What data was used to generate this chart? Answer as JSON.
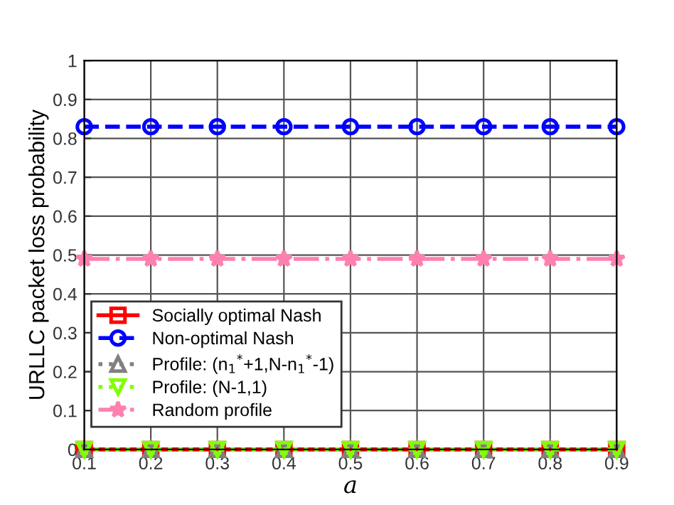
{
  "chart_data": {
    "type": "line",
    "xlabel": "a",
    "ylabel": "URLLC packet loss probability",
    "x": [
      0.1,
      0.2,
      0.3,
      0.4,
      0.5,
      0.6,
      0.7,
      0.8,
      0.9
    ],
    "series": [
      {
        "name": "Socially optimal Nash",
        "color": "#ff0000",
        "marker": "square",
        "line_style": "solid",
        "values": [
          0,
          0,
          0,
          0,
          0,
          0,
          0,
          0,
          0
        ]
      },
      {
        "name": "Non-optimal Nash",
        "color": "#0000ff",
        "marker": "circle",
        "line_style": "dashed",
        "values": [
          0.83,
          0.83,
          0.83,
          0.83,
          0.83,
          0.83,
          0.83,
          0.83,
          0.83
        ]
      },
      {
        "name": "Profile: (n$_{1}$$^{*}$+1,N-n$_{1}$$^{*}$-1)",
        "color": "#808080",
        "marker": "triangle",
        "line_style": "dotted",
        "values": [
          0,
          0,
          0,
          0,
          0,
          0,
          0,
          0,
          0
        ]
      },
      {
        "name": "Profile: (N-1,1)",
        "color": "#80ff00",
        "marker": "triangle_down",
        "line_style": "dotted",
        "values": [
          0,
          0,
          0,
          0,
          0,
          0,
          0,
          0,
          0
        ]
      },
      {
        "name": "Random profile",
        "color": "#ff80b0",
        "marker": "star",
        "line_style": "dashdot",
        "values": [
          0.49,
          0.49,
          0.49,
          0.49,
          0.49,
          0.49,
          0.49,
          0.49,
          0.49
        ]
      }
    ],
    "xlim": [
      0.1,
      0.9
    ],
    "ylim": [
      0,
      1
    ],
    "xticks": [
      0.1,
      0.2,
      0.3,
      0.4,
      0.5,
      0.6,
      0.7,
      0.8,
      0.9
    ],
    "yticks": [
      0,
      0.1,
      0.2,
      0.3,
      0.4,
      0.5,
      0.6,
      0.7,
      0.8,
      0.9,
      1
    ],
    "grid": true,
    "legend": "bottom left"
  }
}
